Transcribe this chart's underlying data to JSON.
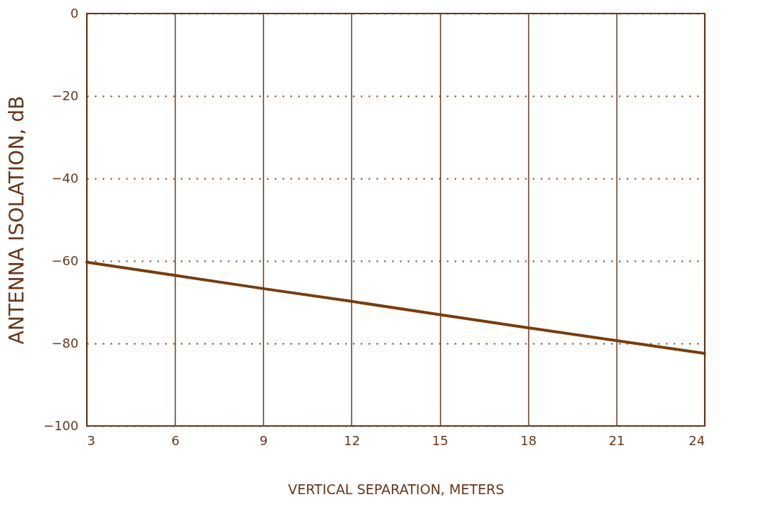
{
  "chart_data": {
    "type": "line",
    "xlabel": "VERTICAL SEPARATION, METERS",
    "ylabel": "ANTENNA ISOLATION, dB",
    "x": [
      3,
      6,
      9,
      12,
      15,
      18,
      21,
      24
    ],
    "series": [
      {
        "color": "#7a3c08",
        "values": [
          -60.3,
          -63.5,
          -66.7,
          -69.8,
          -73.0,
          -76.2,
          -79.3,
          -82.4
        ]
      }
    ],
    "xlim": [
      3,
      24
    ],
    "xticks": [
      3,
      6,
      9,
      12,
      15,
      18,
      21,
      24
    ],
    "ylim": [
      -100,
      0
    ],
    "yticks": [
      -100,
      -80,
      -60,
      -40,
      -20,
      0
    ],
    "grid": true,
    "marker": "none",
    "line_style": "solid"
  }
}
